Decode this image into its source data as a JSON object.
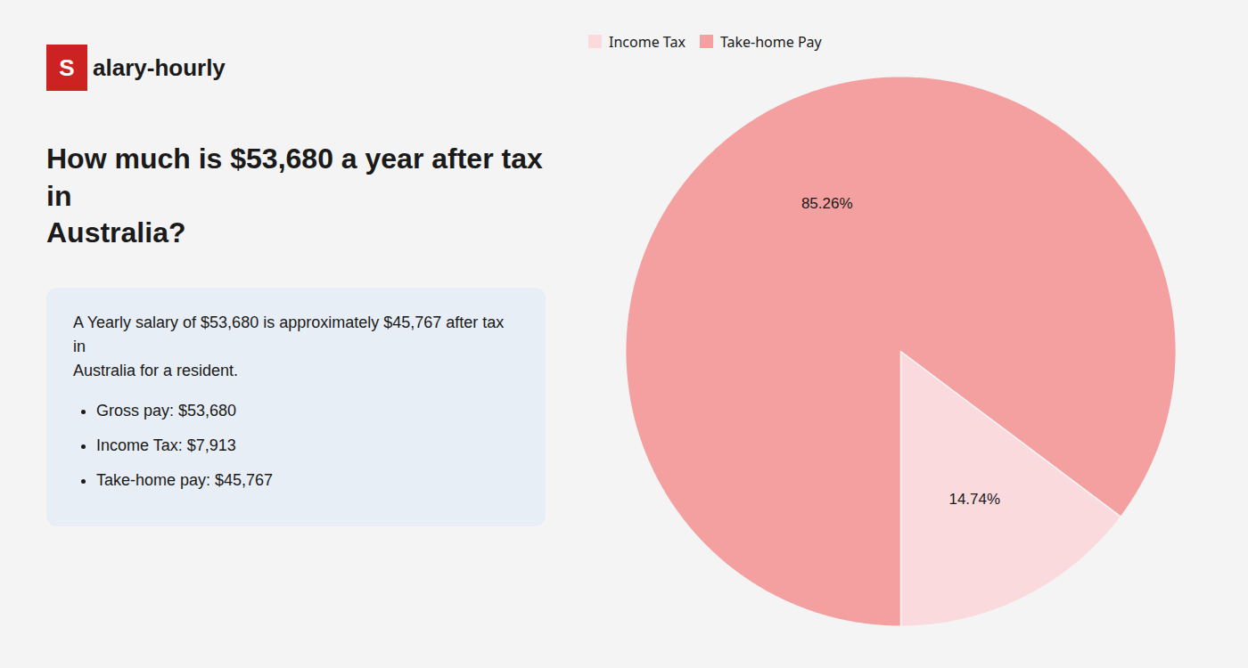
{
  "chart_data": {
    "type": "pie",
    "title": "How much is $53,680 a year after tax in\nAustralia?",
    "annotations": [
      "Salary-hourly",
      "A Yearly salary of $53,680 is approximately $45,767 after tax in\nAustralia for a resident.",
      "Gross pay: $53,680",
      "Income Tax: $7,913",
      "Take-home pay: $45,767"
    ],
    "categories": [
      "Income Tax",
      "Take-home Pay"
    ],
    "values": [
      14.74,
      85.26
    ],
    "value_labels": [
      "14.74%",
      "85.26%"
    ],
    "colors": [
      "#fadadd",
      "#f4a0a0"
    ],
    "data_labels": true,
    "legend": "upper left"
  }
}
